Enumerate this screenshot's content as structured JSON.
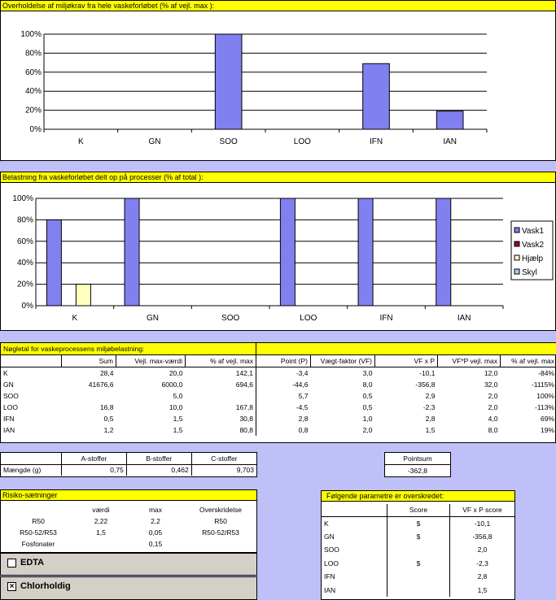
{
  "chart1": {
    "title": "Overholdelse af miljøkrav fra hele vaskeforløbet (% af vejl. max ):",
    "chart_data": {
      "type": "bar",
      "categories": [
        "K",
        "GN",
        "SOO",
        "LOO",
        "IFN",
        "IAN"
      ],
      "values": [
        0,
        0,
        100,
        0,
        69,
        19
      ],
      "ylim": [
        0,
        100
      ],
      "yticks": [
        "0%",
        "20%",
        "40%",
        "60%",
        "80%",
        "100%"
      ],
      "color": "#8080f0"
    }
  },
  "chart2": {
    "title": "Belastning fra vaskeforløbet delt op på processer (% af total ):",
    "chart_data": {
      "type": "bar",
      "categories": [
        "K",
        "GN",
        "SOO",
        "LOO",
        "IFN",
        "IAN"
      ],
      "ylim": [
        0,
        100
      ],
      "yticks": [
        "0%",
        "20%",
        "40%",
        "60%",
        "80%",
        "100%"
      ],
      "series": [
        {
          "name": "Vask1",
          "color": "#8080f0",
          "values": [
            80,
            100,
            0,
            100,
            100,
            100
          ]
        },
        {
          "name": "Vask2",
          "color": "#990033",
          "values": [
            0,
            0,
            0,
            0,
            0,
            0
          ]
        },
        {
          "name": "Hjælp",
          "color": "#ffffc0",
          "values": [
            20,
            0,
            0,
            0,
            0,
            0
          ]
        },
        {
          "name": "Skyl",
          "color": "#a0d0f0",
          "values": [
            0,
            0,
            0,
            0,
            0,
            0
          ]
        }
      ],
      "legend": "right"
    }
  },
  "keytable": {
    "title": "Nøgletal for vaskeprocessens miljøbelastning:",
    "headers": [
      "Sum",
      "Vejl. max-værdi",
      "% af vejl. max",
      "Point (P)",
      "Vægt-faktor (VF)",
      "VF x P",
      "VF*P vejl. max",
      "% af vejl. max"
    ],
    "rows": [
      {
        "label": "K",
        "cells": [
          "28,4",
          "20,0",
          "142,1",
          "-3,4",
          "3,0",
          "-10,1",
          "12,0",
          "-84%"
        ]
      },
      {
        "label": "GN",
        "cells": [
          "41676,6",
          "6000,0",
          "694,6",
          "-44,6",
          "8,0",
          "-356,8",
          "32,0",
          "-1115%"
        ]
      },
      {
        "label": "SOO",
        "cells": [
          "",
          "5,0",
          "",
          "5,7",
          "0,5",
          "2,9",
          "2,0",
          "100%"
        ]
      },
      {
        "label": "LOO",
        "cells": [
          "16,8",
          "10,0",
          "167,8",
          "-4,5",
          "0,5",
          "-2,3",
          "2,0",
          "-113%"
        ]
      },
      {
        "label": "IFN",
        "cells": [
          "0,5",
          "1,5",
          "30,8",
          "2,8",
          "1,0",
          "2,8",
          "4,0",
          "69%"
        ]
      },
      {
        "label": "IAN",
        "cells": [
          "1,2",
          "1,5",
          "80,8",
          "0,8",
          "2,0",
          "1,5",
          "8,0",
          "19%"
        ]
      }
    ]
  },
  "stoffer": {
    "headers": [
      "A-stoffer",
      "B-stoffer",
      "C-stoffer"
    ],
    "row_label": "Mængde (g)",
    "values": [
      "0,75",
      "0,462",
      "9,703"
    ]
  },
  "pointsum": {
    "label": "Pointsum",
    "value": "-362,8"
  },
  "risiko": {
    "title": "Risiko-sætninger",
    "headers": [
      "værdi",
      "max",
      "Overskridelse"
    ],
    "rows": [
      {
        "label": "R50",
        "vaerdi": "2,22",
        "max": "2,2",
        "over": "R50"
      },
      {
        "label": "R50-52/R53",
        "vaerdi": "1,5",
        "max": "0,05",
        "over": "R50-52/R53"
      },
      {
        "label": "Fosfonater",
        "vaerdi": "",
        "max": "0,15",
        "over": ""
      }
    ]
  },
  "edta": {
    "label": "EDTA",
    "checked": false,
    "mark": ""
  },
  "chlor": {
    "label": "Chlorholdig",
    "checked": true,
    "mark": "×"
  },
  "params": {
    "title": "Følgende parametre er overskredet:",
    "headers": [
      "Score",
      "VF x P score"
    ],
    "rows": [
      {
        "label": "K",
        "score": "$",
        "vfp": "-10,1"
      },
      {
        "label": "GN",
        "score": "$",
        "vfp": "-356,8"
      },
      {
        "label": "SOO",
        "score": "",
        "vfp": "2,0"
      },
      {
        "label": "LOO",
        "score": "$",
        "vfp": "-2,3"
      },
      {
        "label": "IFN",
        "score": "",
        "vfp": "2,8"
      },
      {
        "label": "IAN",
        "score": "",
        "vfp": "1,5"
      }
    ]
  }
}
